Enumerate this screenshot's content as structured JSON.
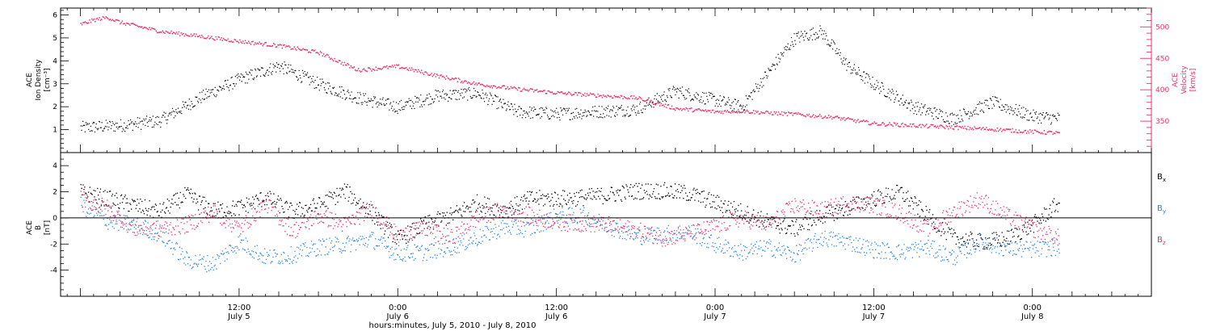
{
  "chart_data": [
    {
      "type": "scatter",
      "panel": "ion-density-velocity",
      "ylabel_lines": [
        "ACE",
        "Ion Density",
        "[cm⁻³]"
      ],
      "y2label_lines": [
        "ACE",
        "Velocity",
        "[km/s]"
      ],
      "ylim": [
        0,
        6.3
      ],
      "y_ticks": [
        1,
        2,
        3,
        4,
        5,
        6
      ],
      "y2lim": [
        300,
        530
      ],
      "y2_ticks": [
        350,
        400,
        450,
        500
      ],
      "series": [
        {
          "color": "#000000",
          "axis": "left",
          "x_hours": [
            0,
            3,
            6,
            9,
            12,
            15,
            18,
            21,
            24,
            27,
            30,
            33,
            36,
            39,
            42,
            45,
            48,
            50,
            52,
            54,
            56,
            58,
            60,
            63,
            66,
            69,
            72,
            74
          ],
          "values": [
            1.1,
            1.2,
            1.4,
            2.4,
            3.2,
            3.8,
            3.0,
            2.4,
            2.0,
            2.5,
            2.6,
            1.8,
            1.7,
            1.8,
            1.9,
            2.7,
            2.3,
            2.0,
            3.5,
            5.0,
            5.3,
            3.8,
            3.0,
            2.0,
            1.5,
            2.2,
            1.6,
            1.5
          ]
        },
        {
          "color": "#e8336b",
          "axis": "right",
          "x_hours": [
            0,
            1,
            2,
            3,
            6,
            9,
            12,
            15,
            18,
            21,
            24,
            27,
            30,
            33,
            36,
            39,
            42,
            45,
            48,
            50,
            52,
            54,
            57,
            60,
            63,
            66,
            69,
            72,
            74
          ],
          "values": [
            505,
            512,
            516,
            508,
            494,
            486,
            478,
            471,
            460,
            432,
            438,
            423,
            410,
            402,
            396,
            392,
            388,
            371,
            366,
            367,
            364,
            362,
            357,
            347,
            344,
            341,
            338,
            334,
            332
          ]
        }
      ]
    },
    {
      "type": "scatter",
      "panel": "magnetic-field",
      "ylabel_lines": [
        "ACE",
        "B",
        "[nT]"
      ],
      "ylim": [
        -6,
        5
      ],
      "y_ticks": [
        -4,
        -2,
        0,
        2,
        4
      ],
      "legend": [
        "Bx",
        "By",
        "Bz"
      ],
      "series": [
        {
          "name": "Bx",
          "color": "#000000",
          "x_hours": [
            0,
            2,
            4,
            6,
            8,
            10,
            12,
            14,
            16,
            18,
            20,
            22,
            24,
            26,
            28,
            30,
            32,
            34,
            36,
            38,
            40,
            42,
            44,
            46,
            48,
            50,
            52,
            54,
            56,
            58,
            60,
            62,
            64,
            66,
            68,
            70,
            72,
            74
          ],
          "values": [
            2.0,
            1.5,
            1.0,
            0.5,
            1.8,
            0.6,
            0.8,
            1.6,
            0.5,
            1.0,
            2.1,
            0.4,
            -1.6,
            -0.5,
            0.2,
            1.2,
            0.6,
            1.5,
            1.5,
            1.6,
            1.8,
            2.1,
            2.1,
            1.9,
            1.2,
            0.5,
            -0.3,
            -0.8,
            0.2,
            0.8,
            1.5,
            2.0,
            0.2,
            -1.5,
            -1.8,
            -1.6,
            -0.5,
            1.2
          ]
        },
        {
          "name": "By",
          "color": "#2b87e0",
          "x_hours": [
            0,
            2,
            4,
            6,
            8,
            10,
            12,
            14,
            16,
            18,
            20,
            22,
            24,
            26,
            28,
            30,
            32,
            34,
            36,
            38,
            40,
            42,
            44,
            46,
            48,
            50,
            52,
            54,
            56,
            58,
            60,
            62,
            64,
            66,
            68,
            70,
            72,
            74
          ],
          "values": [
            1.0,
            -0.2,
            -0.5,
            -1.2,
            -3.2,
            -3.5,
            -1.8,
            -3.0,
            -2.8,
            -2.2,
            -2.0,
            -1.6,
            -2.7,
            -2.6,
            -2.2,
            -1.5,
            -0.7,
            -0.8,
            0.2,
            0.2,
            -0.6,
            -1.4,
            -1.2,
            -1.0,
            -2.0,
            -2.6,
            -2.2,
            -2.8,
            -1.5,
            -1.8,
            -2.4,
            -2.6,
            -2.2,
            -3.0,
            -1.8,
            -2.3,
            -2.4,
            -2.2
          ]
        },
        {
          "name": "Bz",
          "color": "#e8336b",
          "x_hours": [
            0,
            2,
            4,
            6,
            8,
            10,
            12,
            14,
            16,
            18,
            20,
            22,
            24,
            26,
            28,
            30,
            32,
            34,
            36,
            38,
            40,
            42,
            44,
            46,
            48,
            50,
            52,
            54,
            56,
            58,
            60,
            62,
            64,
            66,
            68,
            70,
            72,
            74
          ],
          "values": [
            1.5,
            0.8,
            -0.8,
            -0.8,
            -0.5,
            0.5,
            -0.8,
            1.2,
            -1.0,
            0.2,
            -0.5,
            0.8,
            -1.4,
            -0.8,
            -1.5,
            0.0,
            0.7,
            0.2,
            -0.3,
            -0.4,
            -0.5,
            -0.9,
            -1.5,
            -1.2,
            -0.6,
            0.0,
            -0.5,
            1.0,
            0.6,
            1.2,
            1.0,
            0.4,
            -0.8,
            0.5,
            1.5,
            0.2,
            -0.8,
            -1.5
          ]
        }
      ]
    }
  ],
  "x_axis": {
    "xlim_hours": [
      -1.5,
      81
    ],
    "major_ticks": [
      {
        "hour": 12,
        "time": "12:00",
        "day": "July 5"
      },
      {
        "hour": 24,
        "time": "0:00",
        "day": "July 6"
      },
      {
        "hour": 36,
        "time": "12:00",
        "day": "July 6"
      },
      {
        "hour": 48,
        "time": "0:00",
        "day": "July 7"
      },
      {
        "hour": 60,
        "time": "12:00",
        "day": "July 7"
      },
      {
        "hour": 72,
        "time": "0:00",
        "day": "July 8"
      }
    ],
    "xlabel": "hours:minutes, July  5, 2010 - July  8, 2010"
  },
  "legend_labels": {
    "bx": {
      "base": "B",
      "sub": "x"
    },
    "by": {
      "base": "B",
      "sub": "y"
    },
    "bz": {
      "base": "B",
      "sub": "z"
    }
  },
  "colors": {
    "black": "#000000",
    "pink": "#e8336b",
    "blue": "#2b87e0"
  }
}
